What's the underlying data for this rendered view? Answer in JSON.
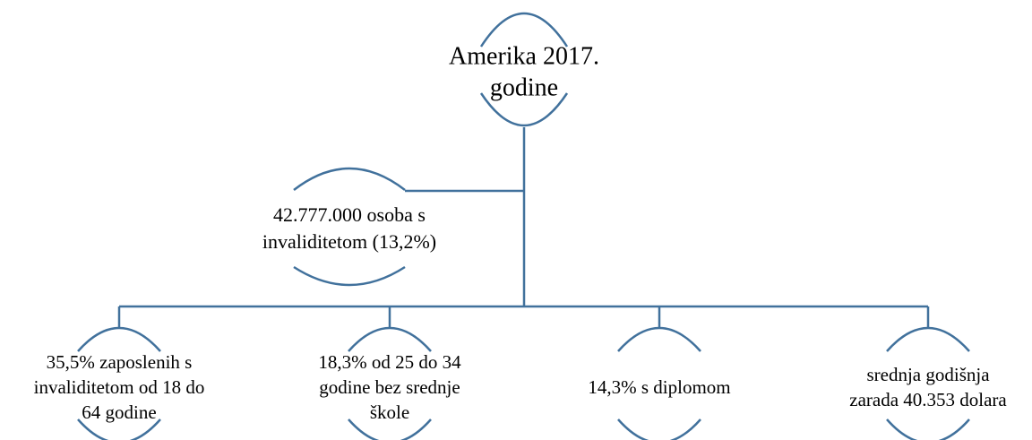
{
  "nodes": [
    {
      "lines": [
        "Amerika 2017.",
        "godine"
      ]
    },
    {
      "lines": [
        "42.777.000 osoba s",
        "invaliditetom (13,2%)"
      ]
    },
    {
      "lines": [
        "35,5% zaposlenih s",
        "invaliditetom od 18 do",
        "64 godine"
      ]
    },
    {
      "lines": [
        "18,3% od 25 do 34",
        "godine bez srednje",
        "škole"
      ]
    },
    {
      "lines": [
        "14,3% s diplomom"
      ]
    },
    {
      "lines": [
        "srednja godišnja",
        "zarada 40.353 dolara"
      ]
    }
  ]
}
